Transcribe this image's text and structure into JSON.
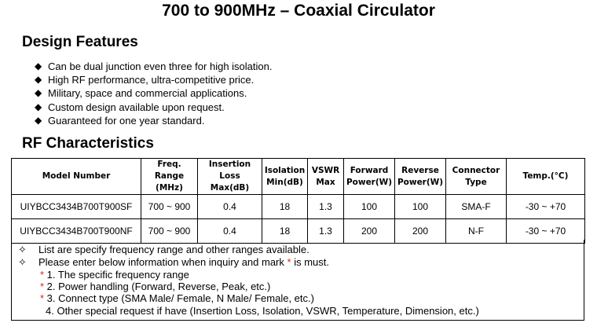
{
  "title": "700 to 900MHz – Coaxial Circulator",
  "design_features": {
    "heading": "Design Features",
    "items": [
      "Can be dual junction even three for high isolation.",
      "High RF performance, ultra-competitive price.",
      "Military, space and commercial applications.",
      "Custom design available upon request.",
      "Guaranteed for one year standard."
    ]
  },
  "rf": {
    "heading": "RF Characteristics",
    "headers": [
      [
        "Model Number"
      ],
      [
        "Freq. Range",
        "(MHz)"
      ],
      [
        "Insertion Loss",
        "Max(dB)"
      ],
      [
        "Isolation",
        "Min(dB)"
      ],
      [
        "VSWR",
        "Max"
      ],
      [
        "Forward",
        "Power(W)"
      ],
      [
        "Reverse",
        "Power(W)"
      ],
      [
        "Connector",
        "Type"
      ],
      [
        "Temp.(°C)"
      ]
    ],
    "rows": [
      [
        "UIYBCC3434B700T900SF",
        "700 ~ 900",
        "0.4",
        "18",
        "1.3",
        "100",
        "100",
        "SMA-F",
        "-30 ~ +70"
      ],
      [
        "UIYBCC3434B700T900NF",
        "700 ~ 900",
        "0.4",
        "18",
        "1.3",
        "200",
        "200",
        "N-F",
        "-30 ~ +70"
      ]
    ]
  },
  "notes": {
    "line1": "List are specify frequency range and other ranges available.",
    "line2_a": "Please enter below information when inquiry and mark ",
    "line2_star": "*",
    "line2_b": " is must.",
    "star": "*",
    "req1": " 1. The specific frequency range",
    "req2": " 2. Power handling (Forward, Reverse, Peak, etc.)",
    "req3": " 3. Connect type (SMA Male/ Female, N Male/ Female, etc.)",
    "req4": "4. Other special request if have (Insertion Loss, Isolation, VSWR, Temperature, Dimension, etc.)"
  },
  "colors": {
    "required_mark": "#e0201e"
  },
  "icons": {
    "feature_bullet": "black-diamond",
    "note_bullet": "white-four-pointed-star"
  }
}
